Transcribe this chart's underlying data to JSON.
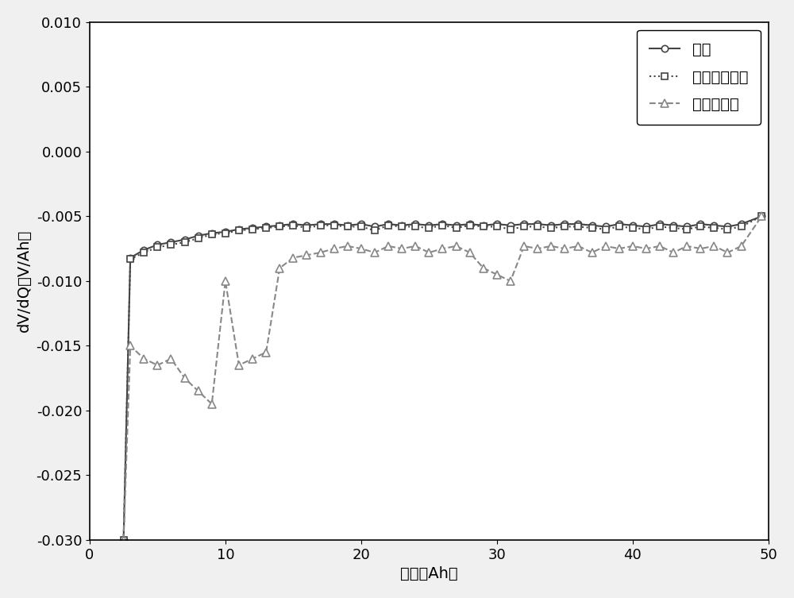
{
  "title": "",
  "xlabel": "容量（Ah）",
  "ylabel": "dV/dQ（V/Ah）",
  "xlim": [
    0,
    50
  ],
  "ylim": [
    -0.03,
    0.01
  ],
  "yticks": [
    -0.03,
    -0.025,
    -0.02,
    -0.015,
    -0.01,
    -0.005,
    0,
    0.005,
    0.01
  ],
  "xticks": [
    0,
    10,
    20,
    30,
    40,
    50
  ],
  "background_color": "#f0f0f0",
  "plot_bg_color": "#ffffff",
  "series": {
    "normal": {
      "label": "正常",
      "color": "#444444",
      "linestyle": "-",
      "marker": "o",
      "linewidth": 1.5,
      "markersize": 6,
      "x": [
        2.5,
        3.0,
        4.0,
        5.0,
        6.0,
        7.0,
        8.0,
        9.0,
        10.0,
        11.0,
        12.0,
        13.0,
        14.0,
        15.0,
        16.0,
        17.0,
        18.0,
        19.0,
        20.0,
        21.0,
        22.0,
        23.0,
        24.0,
        25.0,
        26.0,
        27.0,
        28.0,
        29.0,
        30.0,
        31.0,
        32.0,
        33.0,
        34.0,
        35.0,
        36.0,
        37.0,
        38.0,
        39.0,
        40.0,
        41.0,
        42.0,
        43.0,
        44.0,
        45.0,
        46.0,
        47.0,
        48.0,
        49.5
      ],
      "y": [
        -0.03,
        -0.0082,
        -0.0076,
        -0.0072,
        -0.007,
        -0.0068,
        -0.0065,
        -0.0063,
        -0.0062,
        -0.006,
        -0.0059,
        -0.0058,
        -0.0057,
        -0.0056,
        -0.0057,
        -0.0056,
        -0.0056,
        -0.0057,
        -0.0056,
        -0.0058,
        -0.0056,
        -0.0057,
        -0.0056,
        -0.0057,
        -0.0056,
        -0.0057,
        -0.0056,
        -0.0057,
        -0.0056,
        -0.0057,
        -0.0056,
        -0.0056,
        -0.0057,
        -0.0056,
        -0.0056,
        -0.0057,
        -0.0058,
        -0.0056,
        -0.0057,
        -0.0058,
        -0.0056,
        -0.0057,
        -0.0058,
        -0.0056,
        -0.0057,
        -0.0058,
        -0.0056,
        -0.005
      ]
    },
    "asymmetric": {
      "label": "非对称自加热",
      "color": "#444444",
      "linestyle": ":",
      "marker": "s",
      "linewidth": 1.5,
      "markersize": 6,
      "x": [
        2.5,
        3.0,
        4.0,
        5.0,
        6.0,
        7.0,
        8.0,
        9.0,
        10.0,
        11.0,
        12.0,
        13.0,
        14.0,
        15.0,
        16.0,
        17.0,
        18.0,
        19.0,
        20.0,
        21.0,
        22.0,
        23.0,
        24.0,
        25.0,
        26.0,
        27.0,
        28.0,
        29.0,
        30.0,
        31.0,
        32.0,
        33.0,
        34.0,
        35.0,
        36.0,
        37.0,
        38.0,
        39.0,
        40.0,
        41.0,
        42.0,
        43.0,
        44.0,
        45.0,
        46.0,
        47.0,
        48.0,
        49.5
      ],
      "y": [
        -0.03,
        -0.0083,
        -0.0078,
        -0.0074,
        -0.0072,
        -0.007,
        -0.0067,
        -0.0064,
        -0.0063,
        -0.0061,
        -0.006,
        -0.0059,
        -0.0058,
        -0.0057,
        -0.0059,
        -0.0057,
        -0.0057,
        -0.0058,
        -0.0058,
        -0.0061,
        -0.0057,
        -0.0058,
        -0.0058,
        -0.0059,
        -0.0057,
        -0.0059,
        -0.0057,
        -0.0058,
        -0.0058,
        -0.006,
        -0.0058,
        -0.0058,
        -0.0059,
        -0.0058,
        -0.0058,
        -0.0059,
        -0.006,
        -0.0058,
        -0.0059,
        -0.006,
        -0.0058,
        -0.0059,
        -0.006,
        -0.0058,
        -0.0059,
        -0.006,
        -0.0058,
        -0.005
      ]
    },
    "ordinary": {
      "label": "普通自加热",
      "color": "#888888",
      "linestyle": "--",
      "marker": "^",
      "linewidth": 1.5,
      "markersize": 7,
      "x": [
        2.5,
        3.0,
        4.0,
        5.0,
        6.0,
        7.0,
        8.0,
        9.0,
        10.0,
        11.0,
        12.0,
        13.0,
        14.0,
        15.0,
        16.0,
        17.0,
        18.0,
        19.0,
        20.0,
        21.0,
        22.0,
        23.0,
        24.0,
        25.0,
        26.0,
        27.0,
        28.0,
        29.0,
        30.0,
        31.0,
        32.0,
        33.0,
        34.0,
        35.0,
        36.0,
        37.0,
        38.0,
        39.0,
        40.0,
        41.0,
        42.0,
        43.0,
        44.0,
        45.0,
        46.0,
        47.0,
        48.0,
        49.5
      ],
      "y": [
        -0.03,
        -0.015,
        -0.016,
        -0.0165,
        -0.016,
        -0.0175,
        -0.0185,
        -0.0195,
        -0.01,
        -0.0165,
        -0.016,
        -0.0155,
        -0.009,
        -0.0082,
        -0.008,
        -0.0078,
        -0.0075,
        -0.0073,
        -0.0075,
        -0.0078,
        -0.0073,
        -0.0075,
        -0.0073,
        -0.0078,
        -0.0075,
        -0.0073,
        -0.0078,
        -0.009,
        -0.0095,
        -0.01,
        -0.0073,
        -0.0075,
        -0.0073,
        -0.0075,
        -0.0073,
        -0.0078,
        -0.0073,
        -0.0075,
        -0.0073,
        -0.0075,
        -0.0073,
        -0.0078,
        -0.0073,
        -0.0075,
        -0.0073,
        -0.0078,
        -0.0073,
        -0.005
      ]
    }
  },
  "legend_loc": "upper right",
  "font_size": 14,
  "tick_fontsize": 13,
  "ylabel_fontsize": 14,
  "xlabel_fontsize": 14
}
